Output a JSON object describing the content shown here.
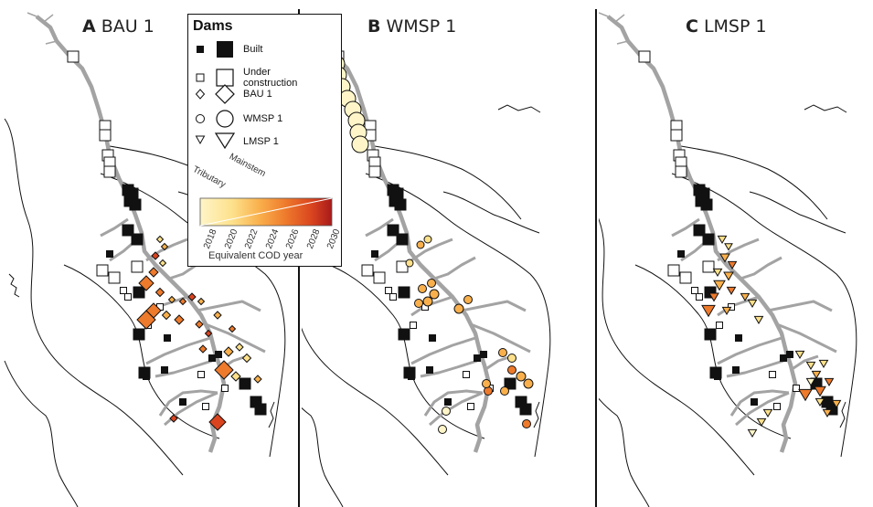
{
  "panels": [
    {
      "letter": "A",
      "name": "BAU 1"
    },
    {
      "letter": "B",
      "name": "WMSP 1"
    },
    {
      "letter": "C",
      "name": "LMSP 1"
    }
  ],
  "legend": {
    "title": "Dams",
    "items": [
      {
        "label": "Built",
        "shape": "square",
        "fill": "#111111"
      },
      {
        "label": "Under\nconstruction",
        "shape": "square",
        "fill": "#ffffff"
      },
      {
        "label": "BAU 1",
        "shape": "diamond",
        "fill": "#ffffff"
      },
      {
        "label": "WMSP 1",
        "shape": "circle",
        "fill": "#ffffff"
      },
      {
        "label": "LMSP 1",
        "shape": "triangle",
        "fill": "#ffffff"
      }
    ],
    "size_labels": [
      "Tributary",
      "Mainstem"
    ],
    "colorbar": {
      "ticks": [
        "2018",
        "2020",
        "2022",
        "2024",
        "2026",
        "2028",
        "2030"
      ],
      "label": "Equivalent COD year",
      "colors": [
        "#fff5c8",
        "#fde08a",
        "#f9b04c",
        "#ee7a2c",
        "#d9441f",
        "#a81a1a"
      ]
    }
  },
  "colors": {
    "river": "#a3a3a3",
    "border": "#111111",
    "built": "#111111",
    "under_construction": "#ffffff"
  }
}
